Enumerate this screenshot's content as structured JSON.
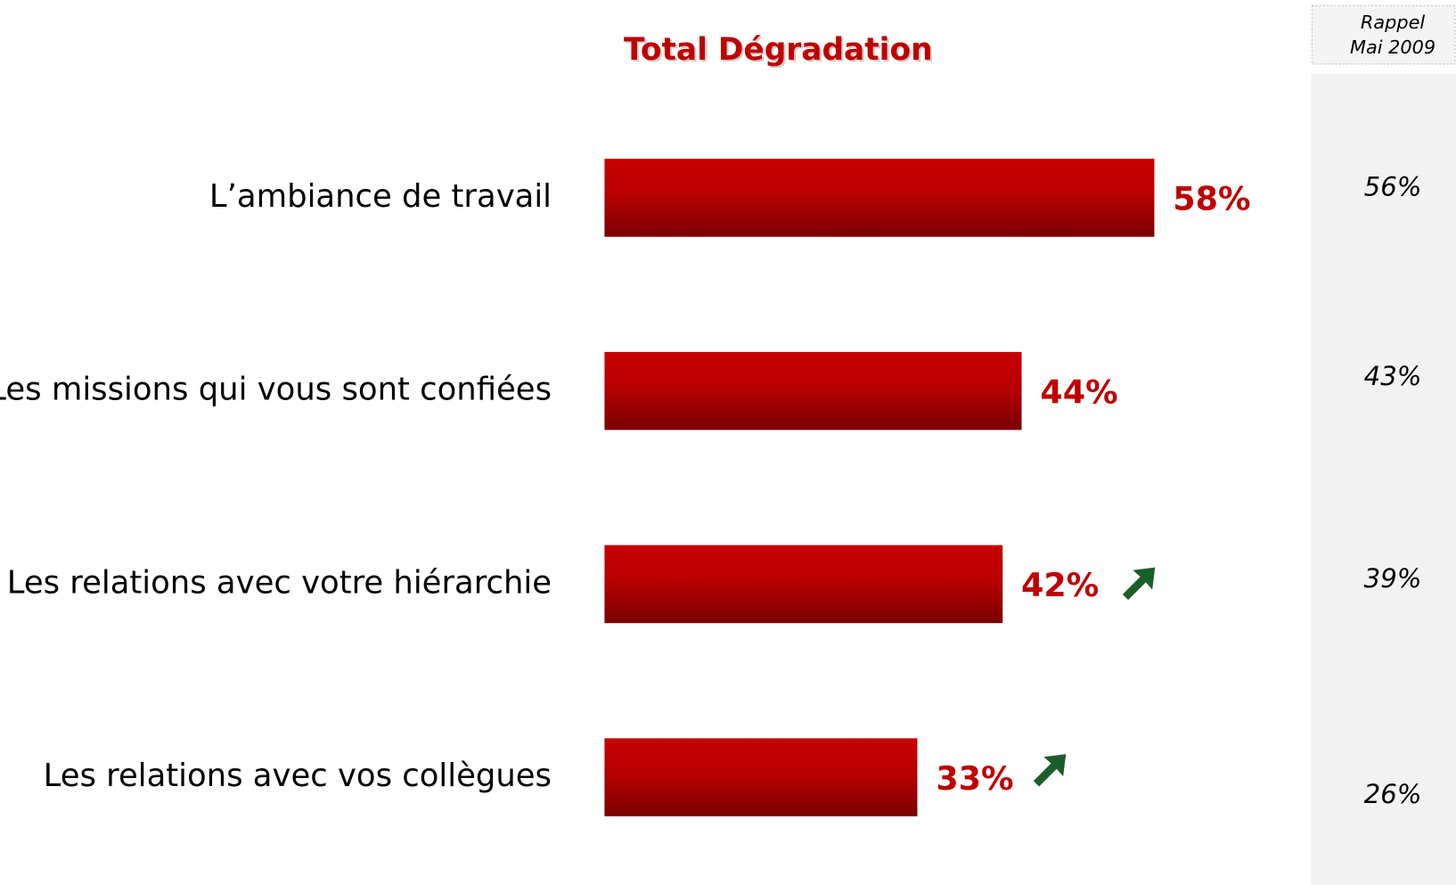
{
  "chart_data": {
    "type": "bar",
    "orientation": "horizontal",
    "title": "Total Dégradation",
    "categories": [
      "L’ambiance de travail",
      "Les missions qui vous sont confiées",
      "Les relations avec votre hiérarchie",
      "Les relations avec vos collègues"
    ],
    "values": [
      58,
      44,
      42,
      33
    ],
    "value_labels": [
      "58%",
      "44%",
      "42%",
      "33%"
    ],
    "color": "#c00000",
    "rappel_title": [
      "Rappel",
      "Mai 2009"
    ],
    "rappel_values": [
      56,
      43,
      39,
      26
    ],
    "rappel_labels": [
      "56%",
      "43%",
      "39%",
      "26%"
    ]
  }
}
